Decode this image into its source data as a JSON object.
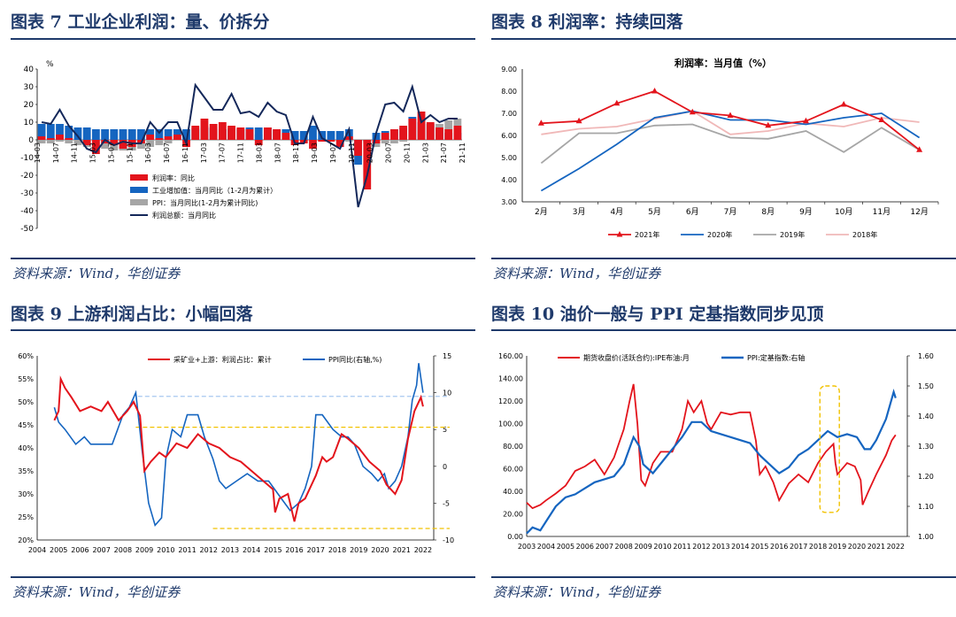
{
  "colors": {
    "navy": "#1f3a6b",
    "red": "#e3141c",
    "blue": "#1565c0",
    "gray": "#a6a6a6",
    "pink": "#f0b8b8",
    "dash_blue": "#a8c8f0",
    "dash_yellow": "#f2c200"
  },
  "panels": [
    {
      "title": "图表 7   工业企业利润：量、价拆分",
      "source": "资料来源：Wind，华创证券"
    },
    {
      "title": "图表 8   利润率：持续回落",
      "source": "资料来源：Wind，华创证券"
    },
    {
      "title": "图表 9   上游利润占比：小幅回落",
      "source": "资料来源：Wind，华创证券"
    },
    {
      "title": "图表 10   油价一般与 PPI 定基指数同步见顶",
      "source": "资料来源：Wind，华创证券"
    }
  ],
  "chart_data": [
    {
      "type": "bar",
      "title": "",
      "ylabel": "%",
      "ylim": [
        -50,
        40
      ],
      "yticks": [
        40,
        30,
        20,
        10,
        0,
        -10,
        -20,
        -30,
        -40,
        -50
      ],
      "xticks": [
        "14-03",
        "14-07",
        "14-11",
        "15-03",
        "15-07",
        "15-11",
        "16-03",
        "16-07",
        "16-11",
        "17-03",
        "17-07",
        "17-11",
        "18-03",
        "18-07",
        "18-11",
        "19-03",
        "19-07",
        "19-11",
        "20-03",
        "20-07",
        "20-11",
        "21-03",
        "21-07",
        "21-11"
      ],
      "x": [
        "14-03",
        "14-05",
        "14-07",
        "14-09",
        "14-11",
        "15-01",
        "15-03",
        "15-05",
        "15-07",
        "15-09",
        "15-11",
        "16-01",
        "16-03",
        "16-05",
        "16-07",
        "16-09",
        "16-11",
        "17-01",
        "17-03",
        "17-05",
        "17-07",
        "17-09",
        "17-11",
        "18-01",
        "18-03",
        "18-05",
        "18-07",
        "18-09",
        "18-11",
        "19-01",
        "19-03",
        "19-05",
        "19-07",
        "19-09",
        "19-11",
        "20-01",
        "20-03",
        "20-05",
        "20-07",
        "20-09",
        "20-11",
        "21-01",
        "21-03",
        "21-05",
        "21-07",
        "21-09",
        "21-11"
      ],
      "series": [
        {
          "name": "利润率：同比",
          "kind": "bar",
          "values": [
            2,
            1,
            3,
            1,
            0,
            -3,
            -8,
            -2,
            -3,
            -5,
            -4,
            -2,
            3,
            1,
            2,
            3,
            -4,
            8,
            12,
            9,
            10,
            8,
            7,
            6,
            -3,
            7,
            6,
            4,
            -3,
            -2,
            -5,
            -1,
            -1,
            -4,
            2,
            -9,
            -28,
            -2,
            4,
            6,
            8,
            12,
            16,
            10,
            7,
            6,
            8
          ]
        },
        {
          "name": "工业增加值：当月同比（1-2月为累计）",
          "kind": "bar",
          "values": [
            9,
            9,
            9,
            8,
            7,
            7,
            6,
            6,
            6,
            6,
            6,
            6,
            6,
            6,
            6,
            6,
            6,
            6,
            7,
            7,
            6,
            6,
            6,
            7,
            7,
            7,
            6,
            6,
            5,
            5,
            8,
            5,
            5,
            5,
            6,
            -14,
            -1,
            4,
            5,
            6,
            7,
            13,
            10,
            9,
            6,
            4,
            4
          ]
        },
        {
          "name": "PPI：当月同比(1-2月为累计同比)",
          "kind": "bar",
          "values": [
            -2,
            -2,
            -1,
            -2,
            -3,
            -4,
            -5,
            -5,
            -6,
            -6,
            -6,
            -5,
            -4,
            -3,
            -2,
            0,
            3,
            7,
            8,
            6,
            6,
            7,
            6,
            4,
            3,
            4,
            5,
            4,
            3,
            0,
            1,
            1,
            0,
            -1,
            -1,
            0,
            -2,
            -4,
            -2,
            -2,
            -1,
            0,
            7,
            9,
            9,
            11,
            12
          ]
        },
        {
          "name": "利润总额：当月同比",
          "kind": "line",
          "values": [
            10,
            9,
            17,
            8,
            2,
            -5,
            -7,
            0,
            -3,
            -1,
            -2,
            -2,
            10,
            4,
            10,
            10,
            -2,
            31,
            24,
            17,
            17,
            26,
            15,
            16,
            13,
            21,
            16,
            14,
            -2,
            -2,
            13,
            1,
            -2,
            -5,
            6,
            -38,
            -20,
            4,
            20,
            21,
            16,
            30,
            10,
            14,
            10,
            12,
            12
          ]
        }
      ]
    },
    {
      "type": "line",
      "title": "利润率：当月值（%）",
      "categories": [
        "2月",
        "3月",
        "4月",
        "5月",
        "6月",
        "7月",
        "8月",
        "9月",
        "10月",
        "11月",
        "12月"
      ],
      "ylim": [
        3.0,
        9.0
      ],
      "yticks": [
        "9.00",
        "8.00",
        "7.00",
        "6.00",
        "5.00",
        "4.00",
        "3.00"
      ],
      "legend": "bottom",
      "series": [
        {
          "name": "2021年",
          "values": [
            6.55,
            6.65,
            7.45,
            8.0,
            7.05,
            6.9,
            6.45,
            6.65,
            7.4,
            6.7,
            5.35
          ]
        },
        {
          "name": "2020年",
          "values": [
            3.5,
            4.5,
            5.6,
            6.8,
            7.1,
            6.7,
            6.7,
            6.5,
            6.8,
            7.0,
            5.9
          ]
        },
        {
          "name": "2019年",
          "values": [
            4.75,
            6.1,
            6.1,
            6.45,
            6.5,
            5.9,
            5.85,
            6.2,
            5.25,
            6.35,
            5.35
          ]
        },
        {
          "name": "2018年",
          "values": [
            6.05,
            6.3,
            6.4,
            6.75,
            7.1,
            6.05,
            6.2,
            6.55,
            6.4,
            6.8,
            6.6
          ]
        }
      ]
    },
    {
      "type": "line",
      "title": "",
      "x_years": [
        "2004",
        "2005",
        "2006",
        "2007",
        "2008",
        "2009",
        "2010",
        "2011",
        "2012",
        "2013",
        "2014",
        "2015",
        "2016",
        "2017",
        "2018",
        "2019",
        "2020",
        "2021",
        "2022"
      ],
      "ylim": [
        20,
        60
      ],
      "yticks": [
        "60%",
        "55%",
        "50%",
        "45%",
        "40%",
        "35%",
        "30%",
        "25%",
        "20%"
      ],
      "y2lim": [
        -10,
        15
      ],
      "y2ticks": [
        "15",
        "10",
        "5",
        "0",
        "-5",
        "-10"
      ],
      "series": [
        {
          "name": "采矿业+上游：利润占比：累计",
          "axis": "left",
          "x": [
            2004.8,
            2005.0,
            2005.1,
            2005.3,
            2005.6,
            2006.0,
            2006.5,
            2007.0,
            2007.3,
            2007.8,
            2008.2,
            2008.5,
            2008.8,
            2009.0,
            2009.3,
            2009.7,
            2010.0,
            2010.5,
            2011.0,
            2011.5,
            2012.0,
            2012.5,
            2013.0,
            2013.5,
            2014.0,
            2014.5,
            2015.0,
            2015.1,
            2015.3,
            2015.7,
            2016.0,
            2016.2,
            2016.5,
            2017.0,
            2017.3,
            2017.5,
            2017.8,
            2018.2,
            2018.5,
            2019.0,
            2019.5,
            2020.0,
            2020.3,
            2020.7,
            2021.0,
            2021.3,
            2021.6,
            2021.9,
            2022.0
          ],
          "values": [
            46,
            48,
            55,
            53,
            51,
            48,
            49,
            48,
            50,
            46,
            48,
            50,
            47,
            35,
            37,
            39,
            38,
            41,
            40,
            43,
            41,
            40,
            38,
            37,
            35,
            33,
            31,
            26,
            29,
            30,
            24,
            28,
            29,
            34,
            38,
            37,
            38,
            43,
            42,
            40,
            37,
            35,
            32,
            30,
            33,
            42,
            48,
            51,
            49
          ]
        },
        {
          "name": "PPI同比(右轴,%)",
          "axis": "right",
          "x": [
            2004.8,
            2005.0,
            2005.3,
            2005.8,
            2006.2,
            2006.5,
            2007.0,
            2007.5,
            2008.0,
            2008.3,
            2008.6,
            2008.9,
            2009.2,
            2009.5,
            2009.8,
            2010.0,
            2010.3,
            2010.7,
            2011.0,
            2011.5,
            2011.8,
            2012.2,
            2012.5,
            2012.8,
            2013.3,
            2013.8,
            2014.3,
            2014.8,
            2015.3,
            2015.8,
            2016.2,
            2016.5,
            2016.8,
            2017.0,
            2017.3,
            2017.8,
            2018.2,
            2018.5,
            2018.8,
            2019.2,
            2019.6,
            2019.9,
            2020.2,
            2020.4,
            2020.7,
            2021.0,
            2021.3,
            2021.5,
            2021.7,
            2021.8,
            2022.0
          ],
          "values": [
            8,
            6,
            5,
            3,
            4,
            3,
            3,
            3,
            7,
            8,
            10,
            2,
            -5,
            -8,
            -7,
            1,
            5,
            4,
            7,
            7,
            4,
            1,
            -2,
            -3,
            -2,
            -1,
            -2,
            -2,
            -4,
            -6,
            -5,
            -3,
            0,
            7,
            7,
            5,
            4,
            4,
            3,
            0,
            -1,
            -2,
            -1,
            -3,
            -2,
            0,
            4,
            9,
            11,
            14,
            10
          ]
        }
      ],
      "annotations": [
        {
          "kind": "hline",
          "axis": "right",
          "value": 9.5,
          "color": "dash_blue"
        },
        {
          "kind": "hline",
          "axis": "left",
          "value": 44.5,
          "color": "dash_yellow"
        },
        {
          "kind": "hline",
          "axis": "left",
          "value": 22.5,
          "color": "dash_yellow"
        }
      ]
    },
    {
      "type": "line",
      "title": "",
      "x_years": [
        "2003",
        "2004",
        "2005",
        "2006",
        "2007",
        "2008",
        "2009",
        "2010",
        "2011",
        "2012",
        "2013",
        "2014",
        "2015",
        "2016",
        "2017",
        "2018",
        "2019",
        "2020",
        "2021",
        "2022"
      ],
      "ylim": [
        0,
        160
      ],
      "yticks": [
        "160.00",
        "140.00",
        "120.00",
        "100.00",
        "80.00",
        "60.00",
        "40.00",
        "20.00",
        "0.00"
      ],
      "y2lim": [
        1.0,
        1.6
      ],
      "y2ticks": [
        "1.60",
        "1.50",
        "1.40",
        "1.30",
        "1.20",
        "1.10",
        "1.00"
      ],
      "series": [
        {
          "name": "期货收盘价(活跃合约):IPE布油:月",
          "axis": "left",
          "x": [
            2003.0,
            2003.3,
            2003.7,
            2004.0,
            2004.5,
            2005.0,
            2005.5,
            2006.0,
            2006.5,
            2007.0,
            2007.5,
            2008.0,
            2008.3,
            2008.5,
            2008.7,
            2008.9,
            2009.1,
            2009.5,
            2009.9,
            2010.5,
            2011.0,
            2011.3,
            2011.6,
            2012.0,
            2012.3,
            2012.5,
            2013.0,
            2013.5,
            2014.0,
            2014.5,
            2014.8,
            2015.0,
            2015.3,
            2015.7,
            2016.0,
            2016.5,
            2017.0,
            2017.5,
            2018.0,
            2018.4,
            2018.8,
            2018.9,
            2019.0,
            2019.5,
            2019.9,
            2020.2,
            2020.3,
            2020.6,
            2021.0,
            2021.5,
            2021.8,
            2022.0
          ],
          "values": [
            30,
            25,
            28,
            32,
            38,
            45,
            58,
            62,
            68,
            55,
            70,
            95,
            120,
            135,
            100,
            50,
            45,
            65,
            75,
            75,
            95,
            120,
            110,
            120,
            100,
            95,
            110,
            108,
            110,
            110,
            85,
            55,
            62,
            48,
            32,
            47,
            55,
            48,
            65,
            75,
            82,
            65,
            55,
            65,
            62,
            50,
            28,
            40,
            55,
            72,
            85,
            90
          ]
        },
        {
          "name": "PPI:定基指数:右轴",
          "axis": "right",
          "x": [
            2003.0,
            2003.3,
            2003.7,
            2004.0,
            2004.5,
            2005.0,
            2005.5,
            2006.0,
            2006.5,
            2007.0,
            2007.5,
            2008.0,
            2008.5,
            2008.8,
            2009.0,
            2009.5,
            2010.0,
            2010.5,
            2011.0,
            2011.5,
            2012.0,
            2012.5,
            2013.0,
            2013.5,
            2014.0,
            2014.5,
            2015.0,
            2015.5,
            2016.0,
            2016.5,
            2017.0,
            2017.5,
            2018.0,
            2018.5,
            2019.0,
            2019.5,
            2020.0,
            2020.4,
            2020.7,
            2021.0,
            2021.5,
            2021.9,
            2022.0
          ],
          "values": [
            1.01,
            1.03,
            1.02,
            1.05,
            1.1,
            1.13,
            1.14,
            1.16,
            1.18,
            1.19,
            1.2,
            1.24,
            1.33,
            1.3,
            1.24,
            1.21,
            1.25,
            1.29,
            1.33,
            1.38,
            1.38,
            1.35,
            1.34,
            1.33,
            1.32,
            1.31,
            1.27,
            1.24,
            1.21,
            1.23,
            1.27,
            1.29,
            1.32,
            1.35,
            1.33,
            1.34,
            1.33,
            1.29,
            1.29,
            1.32,
            1.39,
            1.48,
            1.46
          ]
        }
      ],
      "annotations": [
        {
          "kind": "box",
          "x": [
            2018.1,
            2019.1
          ],
          "axis": "right",
          "y": [
            1.08,
            1.5
          ],
          "color": "dash_yellow"
        }
      ]
    }
  ]
}
